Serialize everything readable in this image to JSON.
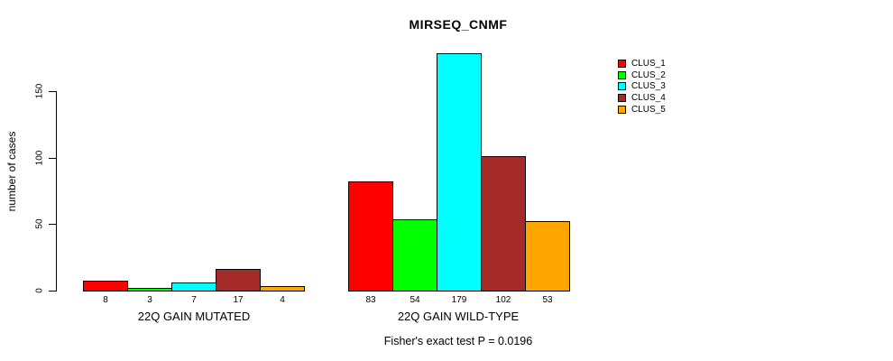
{
  "chart_data": {
    "type": "bar",
    "title": "MIRSEQ_CNMF",
    "subtitle": "Fisher's exact test P = 0.0196",
    "ylabel": "number of cases",
    "xlabel": "",
    "categories": [
      "22Q GAIN MUTATED",
      "22Q GAIN WILD-TYPE"
    ],
    "series": [
      {
        "name": "CLUS_1",
        "color": "#FF0000",
        "values": [
          8,
          83
        ]
      },
      {
        "name": "CLUS_2",
        "color": "#00FF00",
        "values": [
          3,
          54
        ]
      },
      {
        "name": "CLUS_3",
        "color": "#00FFFF",
        "values": [
          7,
          179
        ]
      },
      {
        "name": "CLUS_4",
        "color": "#A52A2A",
        "values": [
          17,
          102
        ]
      },
      {
        "name": "CLUS_5",
        "color": "#FFA500",
        "values": [
          4,
          53
        ]
      }
    ],
    "bar_value_labels": [
      [
        "8",
        "3",
        "7",
        "17",
        "4"
      ],
      [
        "83",
        "54",
        "179",
        "102",
        "53"
      ]
    ],
    "yticks": [
      0,
      50,
      100,
      150
    ],
    "ylim": [
      0,
      185
    ],
    "grid": false,
    "legend_position": "top-right",
    "legend_entries": [
      "CLUS_1",
      "CLUS_2",
      "CLUS_3",
      "CLUS_4",
      "CLUS_5"
    ]
  }
}
